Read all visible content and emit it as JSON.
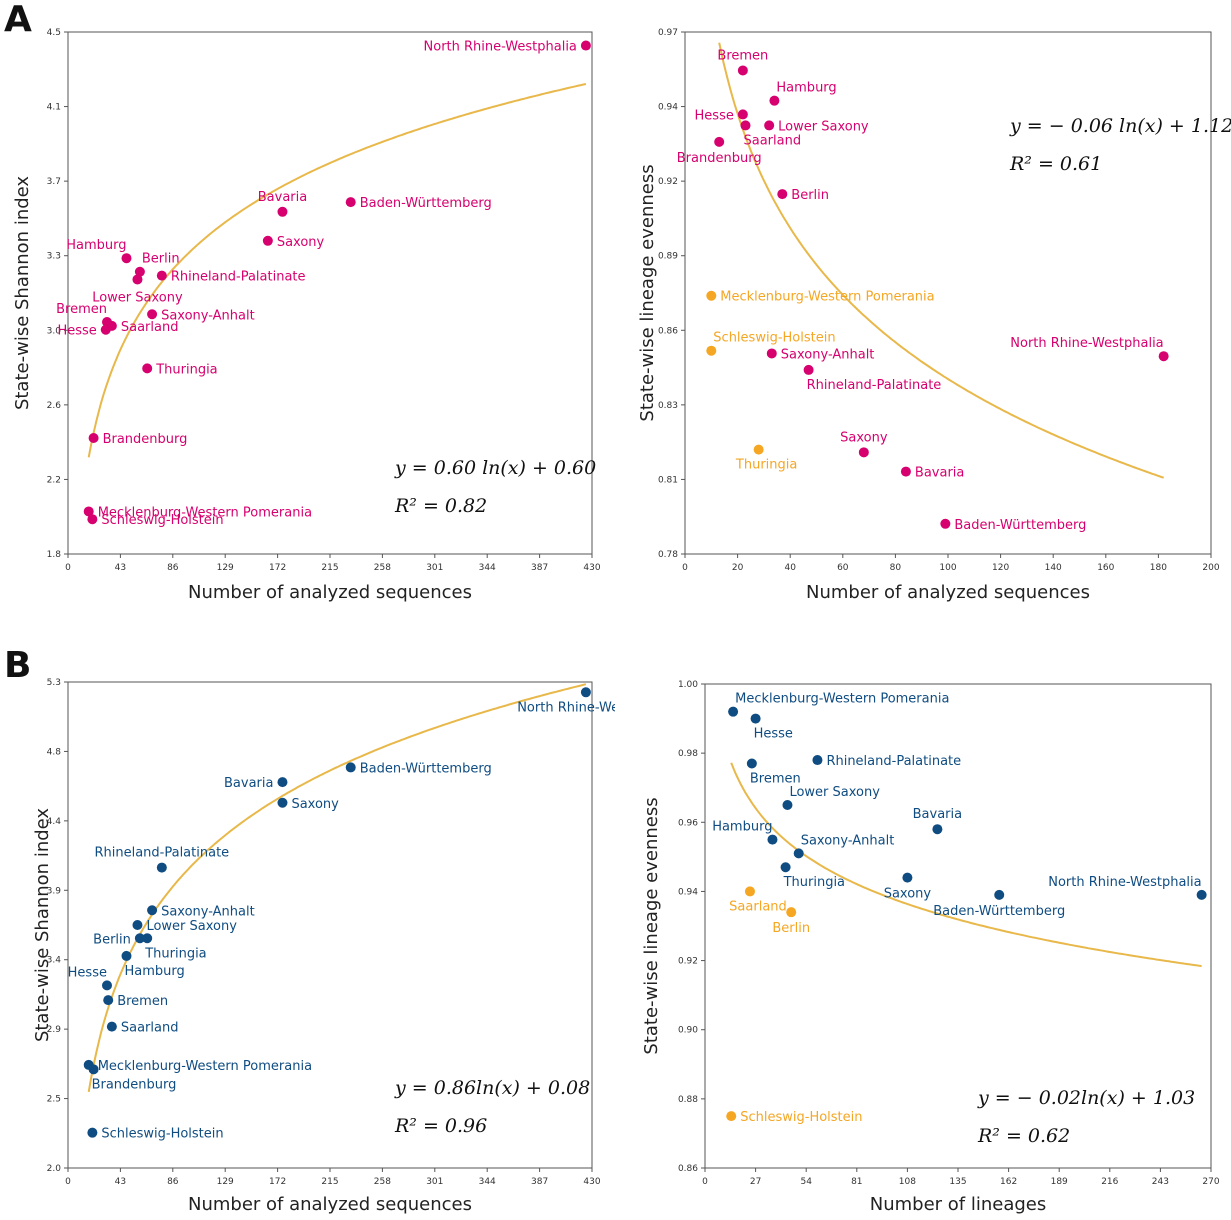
{
  "panels": [
    {
      "letter": "A"
    },
    {
      "letter": "B"
    }
  ],
  "colors": {
    "magenta": "#d6006e",
    "orange": "#f5a623",
    "navy": "#0f4c81",
    "curve": "#e8b84a"
  },
  "chart_data": [
    {
      "type": "scatter",
      "panel": "A",
      "xlabel": "Number of analyzed sequences",
      "ylabel": "State-wise Shannon index",
      "xlim": [
        0,
        430
      ],
      "ylim": [
        1.8,
        4.5
      ],
      "xticks": [
        "0",
        "43",
        "86",
        "129",
        "172",
        "215",
        "258",
        "301",
        "344",
        "387",
        "430"
      ],
      "yticks": [
        "1.8",
        "2.2",
        "2.6",
        "3.0",
        "3.3",
        "3.7",
        "4.1",
        "4.5"
      ],
      "grid": false,
      "fit": {
        "equation": "y = 0.60 ln(x) + 0.60",
        "r2": "R² = 0.82",
        "a": 0.6,
        "b": 0.6,
        "x_range": [
          17,
          425
        ],
        "log_base": "e"
      },
      "points": [
        {
          "label": "North Rhine-Westphalia",
          "x": 425,
          "y": 4.43,
          "color": "#d6006e",
          "side": "left"
        },
        {
          "label": "Baden-Württemberg",
          "x": 232,
          "y": 3.62,
          "color": "#d6006e",
          "side": "right"
        },
        {
          "label": "Bavaria",
          "x": 176,
          "y": 3.57,
          "color": "#d6006e",
          "side": "above"
        },
        {
          "label": "Saxony",
          "x": 164,
          "y": 3.42,
          "color": "#d6006e",
          "side": "right"
        },
        {
          "label": "Hamburg",
          "x": 48,
          "y": 3.33,
          "color": "#d6006e",
          "side": "aboveleft"
        },
        {
          "label": "Berlin",
          "x": 59,
          "y": 3.26,
          "color": "#d6006e",
          "side": "aboveright"
        },
        {
          "label": "Rhineland-Palatinate",
          "x": 77,
          "y": 3.24,
          "color": "#d6006e",
          "side": "right"
        },
        {
          "label": "Lower Saxony",
          "x": 57,
          "y": 3.22,
          "color": "#d6006e",
          "side": "belowwide"
        },
        {
          "label": "Saxony-Anhalt",
          "x": 69,
          "y": 3.04,
          "color": "#d6006e",
          "side": "right"
        },
        {
          "label": "Bremen",
          "x": 32,
          "y": 3.0,
          "color": "#d6006e",
          "side": "aboveleft"
        },
        {
          "label": "Saarland",
          "x": 36,
          "y": 2.98,
          "color": "#d6006e",
          "side": "right"
        },
        {
          "label": "Hesse",
          "x": 31,
          "y": 2.96,
          "color": "#d6006e",
          "side": "left"
        },
        {
          "label": "Thuringia",
          "x": 65,
          "y": 2.76,
          "color": "#d6006e",
          "side": "right"
        },
        {
          "label": "Brandenburg",
          "x": 21,
          "y": 2.4,
          "color": "#d6006e",
          "side": "right"
        },
        {
          "label": "Mecklenburg-Western Pomerania",
          "x": 17,
          "y": 2.02,
          "color": "#d6006e",
          "side": "right"
        },
        {
          "label": "Schleswig-Holstein",
          "x": 20,
          "y": 1.98,
          "color": "#d6006e",
          "side": "right"
        }
      ]
    },
    {
      "type": "scatter",
      "panel": "A",
      "xlabel": "Number of analyzed sequences",
      "ylabel": "State-wise lineage evenness",
      "xlim": [
        0,
        200
      ],
      "ylim": [
        0.78,
        0.97
      ],
      "xticks": [
        "0",
        "20",
        "40",
        "60",
        "80",
        "100",
        "120",
        "140",
        "160",
        "180",
        "200"
      ],
      "yticks": [
        "0.78",
        "0.81",
        "0.83",
        "0.86",
        "0.89",
        "0.92",
        "0.94",
        "0.97"
      ],
      "grid": false,
      "fit": {
        "equation": "y = − 0.06 ln(x) + 1.12",
        "r2": "R² = 0.61",
        "a": -0.06,
        "b": 1.12,
        "x_range": [
          13,
          182
        ],
        "log_base": "e"
      },
      "points": [
        {
          "label": "Bremen",
          "x": 22,
          "y": 0.956,
          "color": "#d6006e",
          "side": "above"
        },
        {
          "label": "Hamburg",
          "x": 34,
          "y": 0.945,
          "color": "#d6006e",
          "side": "aboveright"
        },
        {
          "label": "Hesse",
          "x": 22,
          "y": 0.94,
          "color": "#d6006e",
          "side": "left"
        },
        {
          "label": "Lower Saxony",
          "x": 32,
          "y": 0.936,
          "color": "#d6006e",
          "side": "right"
        },
        {
          "label": "Saarland",
          "x": 23,
          "y": 0.936,
          "color": "#d6006e",
          "side": "belowright"
        },
        {
          "label": "Brandenburg",
          "x": 13,
          "y": 0.93,
          "color": "#d6006e",
          "side": "below"
        },
        {
          "label": "Berlin",
          "x": 37,
          "y": 0.911,
          "color": "#d6006e",
          "side": "right"
        },
        {
          "label": "Mecklenburg-Western Pomerania",
          "x": 10,
          "y": 0.874,
          "color": "#f5a623",
          "side": "right"
        },
        {
          "label": "Schleswig-Holstein",
          "x": 10,
          "y": 0.854,
          "color": "#f5a623",
          "side": "aboveright"
        },
        {
          "label": "North Rhine-Westphalia",
          "x": 182,
          "y": 0.852,
          "color": "#d6006e",
          "side": "aboveleft"
        },
        {
          "label": "Saxony-Anhalt",
          "x": 33,
          "y": 0.853,
          "color": "#d6006e",
          "side": "right"
        },
        {
          "label": "Rhineland-Palatinate",
          "x": 47,
          "y": 0.847,
          "color": "#d6006e",
          "side": "belowright"
        },
        {
          "label": "Thuringia",
          "x": 28,
          "y": 0.818,
          "color": "#f5a623",
          "side": "belowleft"
        },
        {
          "label": "Saxony",
          "x": 68,
          "y": 0.817,
          "color": "#d6006e",
          "side": "above"
        },
        {
          "label": "Bavaria",
          "x": 84,
          "y": 0.81,
          "color": "#d6006e",
          "side": "right"
        },
        {
          "label": "Baden-Württemberg",
          "x": 99,
          "y": 0.791,
          "color": "#d6006e",
          "side": "right"
        }
      ]
    },
    {
      "type": "scatter",
      "panel": "B",
      "xlabel": "Number of analyzed sequences",
      "ylabel": "State-wise Shannon index",
      "xlim": [
        0,
        430
      ],
      "ylim": [
        2.0,
        5.3
      ],
      "xticks": [
        "0",
        "43",
        "86",
        "129",
        "172",
        "215",
        "258",
        "301",
        "344",
        "387",
        "430"
      ],
      "yticks": [
        "2.0",
        "2.5",
        "2.9",
        "3.4",
        "3.9",
        "4.4",
        "4.8",
        "5.3"
      ],
      "grid": false,
      "fit": {
        "equation": "y = 0.86ln(x) + 0.08",
        "r2": "R² = 0.96",
        "a": 0.86,
        "b": 0.08,
        "x_range": [
          17,
          425
        ],
        "log_base": "e"
      },
      "points": [
        {
          "label": "North Rhine-Westphalia",
          "x": 425,
          "y": 5.23,
          "color": "#0f4c81",
          "side": "belowleft"
        },
        {
          "label": "Baden-Württemberg",
          "x": 232,
          "y": 4.72,
          "color": "#0f4c81",
          "side": "right"
        },
        {
          "label": "Bavaria",
          "x": 176,
          "y": 4.62,
          "color": "#0f4c81",
          "side": "left"
        },
        {
          "label": "Saxony",
          "x": 176,
          "y": 4.48,
          "color": "#0f4c81",
          "side": "right"
        },
        {
          "label": "Rhineland-Palatinate",
          "x": 77,
          "y": 4.04,
          "color": "#0f4c81",
          "side": "above"
        },
        {
          "label": "Saxony-Anhalt",
          "x": 69,
          "y": 3.75,
          "color": "#0f4c81",
          "side": "right"
        },
        {
          "label": "Lower Saxony",
          "x": 57,
          "y": 3.65,
          "color": "#0f4c81",
          "side": "right"
        },
        {
          "label": "Berlin",
          "x": 59,
          "y": 3.56,
          "color": "#0f4c81",
          "side": "left"
        },
        {
          "label": "Thuringia",
          "x": 65,
          "y": 3.56,
          "color": "#0f4c81",
          "side": "belowright"
        },
        {
          "label": "Hamburg",
          "x": 48,
          "y": 3.44,
          "color": "#0f4c81",
          "side": "belowright"
        },
        {
          "label": "Hesse",
          "x": 32,
          "y": 3.24,
          "color": "#0f4c81",
          "side": "aboveleft"
        },
        {
          "label": "Bremen",
          "x": 33,
          "y": 3.14,
          "color": "#0f4c81",
          "side": "right"
        },
        {
          "label": "Saarland",
          "x": 36,
          "y": 2.96,
          "color": "#0f4c81",
          "side": "right"
        },
        {
          "label": "Mecklenburg-Western Pomerania",
          "x": 17,
          "y": 2.7,
          "color": "#0f4c81",
          "side": "right"
        },
        {
          "label": "Brandenburg",
          "x": 21,
          "y": 2.67,
          "color": "#0f4c81",
          "side": "belowright"
        },
        {
          "label": "Schleswig-Holstein",
          "x": 20,
          "y": 2.24,
          "color": "#0f4c81",
          "side": "right"
        }
      ]
    },
    {
      "type": "scatter",
      "panel": "B",
      "xlabel": "Number of lineages",
      "ylabel": "State-wise lineage evenness",
      "xlim": [
        0,
        270
      ],
      "ylim": [
        0.86,
        1.0
      ],
      "xticks": [
        "0",
        "27",
        "54",
        "81",
        "108",
        "135",
        "162",
        "189",
        "216",
        "243",
        "270"
      ],
      "yticks": [
        "0.86",
        "0.88",
        "0.90",
        "0.92",
        "0.94",
        "0.96",
        "0.98",
        "1.00"
      ],
      "grid": false,
      "fit": {
        "equation": "y = − 0.02ln(x) + 1.03",
        "r2": "R² = 0.62",
        "a": -0.02,
        "b": 1.03,
        "x_range": [
          14,
          265
        ],
        "log_base": "e"
      },
      "points": [
        {
          "label": "Mecklenburg-Western Pomerania",
          "x": 15,
          "y": 0.992,
          "color": "#0f4c81",
          "side": "aboveright"
        },
        {
          "label": "Hesse",
          "x": 27,
          "y": 0.99,
          "color": "#0f4c81",
          "side": "belowright"
        },
        {
          "label": "Bremen",
          "x": 25,
          "y": 0.977,
          "color": "#0f4c81",
          "side": "belowright"
        },
        {
          "label": "Rhineland-Palatinate",
          "x": 60,
          "y": 0.978,
          "color": "#0f4c81",
          "side": "right"
        },
        {
          "label": "Lower Saxony",
          "x": 44,
          "y": 0.965,
          "color": "#0f4c81",
          "side": "aboveright"
        },
        {
          "label": "Bavaria",
          "x": 124,
          "y": 0.958,
          "color": "#0f4c81",
          "side": "above"
        },
        {
          "label": "Hamburg",
          "x": 36,
          "y": 0.955,
          "color": "#0f4c81",
          "side": "aboveleft"
        },
        {
          "label": "Saxony-Anhalt",
          "x": 50,
          "y": 0.951,
          "color": "#0f4c81",
          "side": "aboveright"
        },
        {
          "label": "Thuringia",
          "x": 43,
          "y": 0.947,
          "color": "#0f4c81",
          "side": "belowright"
        },
        {
          "label": "Saxony",
          "x": 108,
          "y": 0.944,
          "color": "#0f4c81",
          "side": "below"
        },
        {
          "label": "North Rhine-Westphalia",
          "x": 265,
          "y": 0.939,
          "color": "#0f4c81",
          "side": "aboveleft"
        },
        {
          "label": "Baden-Württemberg",
          "x": 157,
          "y": 0.939,
          "color": "#0f4c81",
          "side": "below"
        },
        {
          "label": "Saarland",
          "x": 24,
          "y": 0.94,
          "color": "#f5a623",
          "side": "belowleft"
        },
        {
          "label": "Berlin",
          "x": 46,
          "y": 0.934,
          "color": "#f5a623",
          "side": "below"
        },
        {
          "label": "Schleswig-Holstein",
          "x": 14,
          "y": 0.875,
          "color": "#f5a623",
          "side": "right"
        }
      ]
    }
  ]
}
